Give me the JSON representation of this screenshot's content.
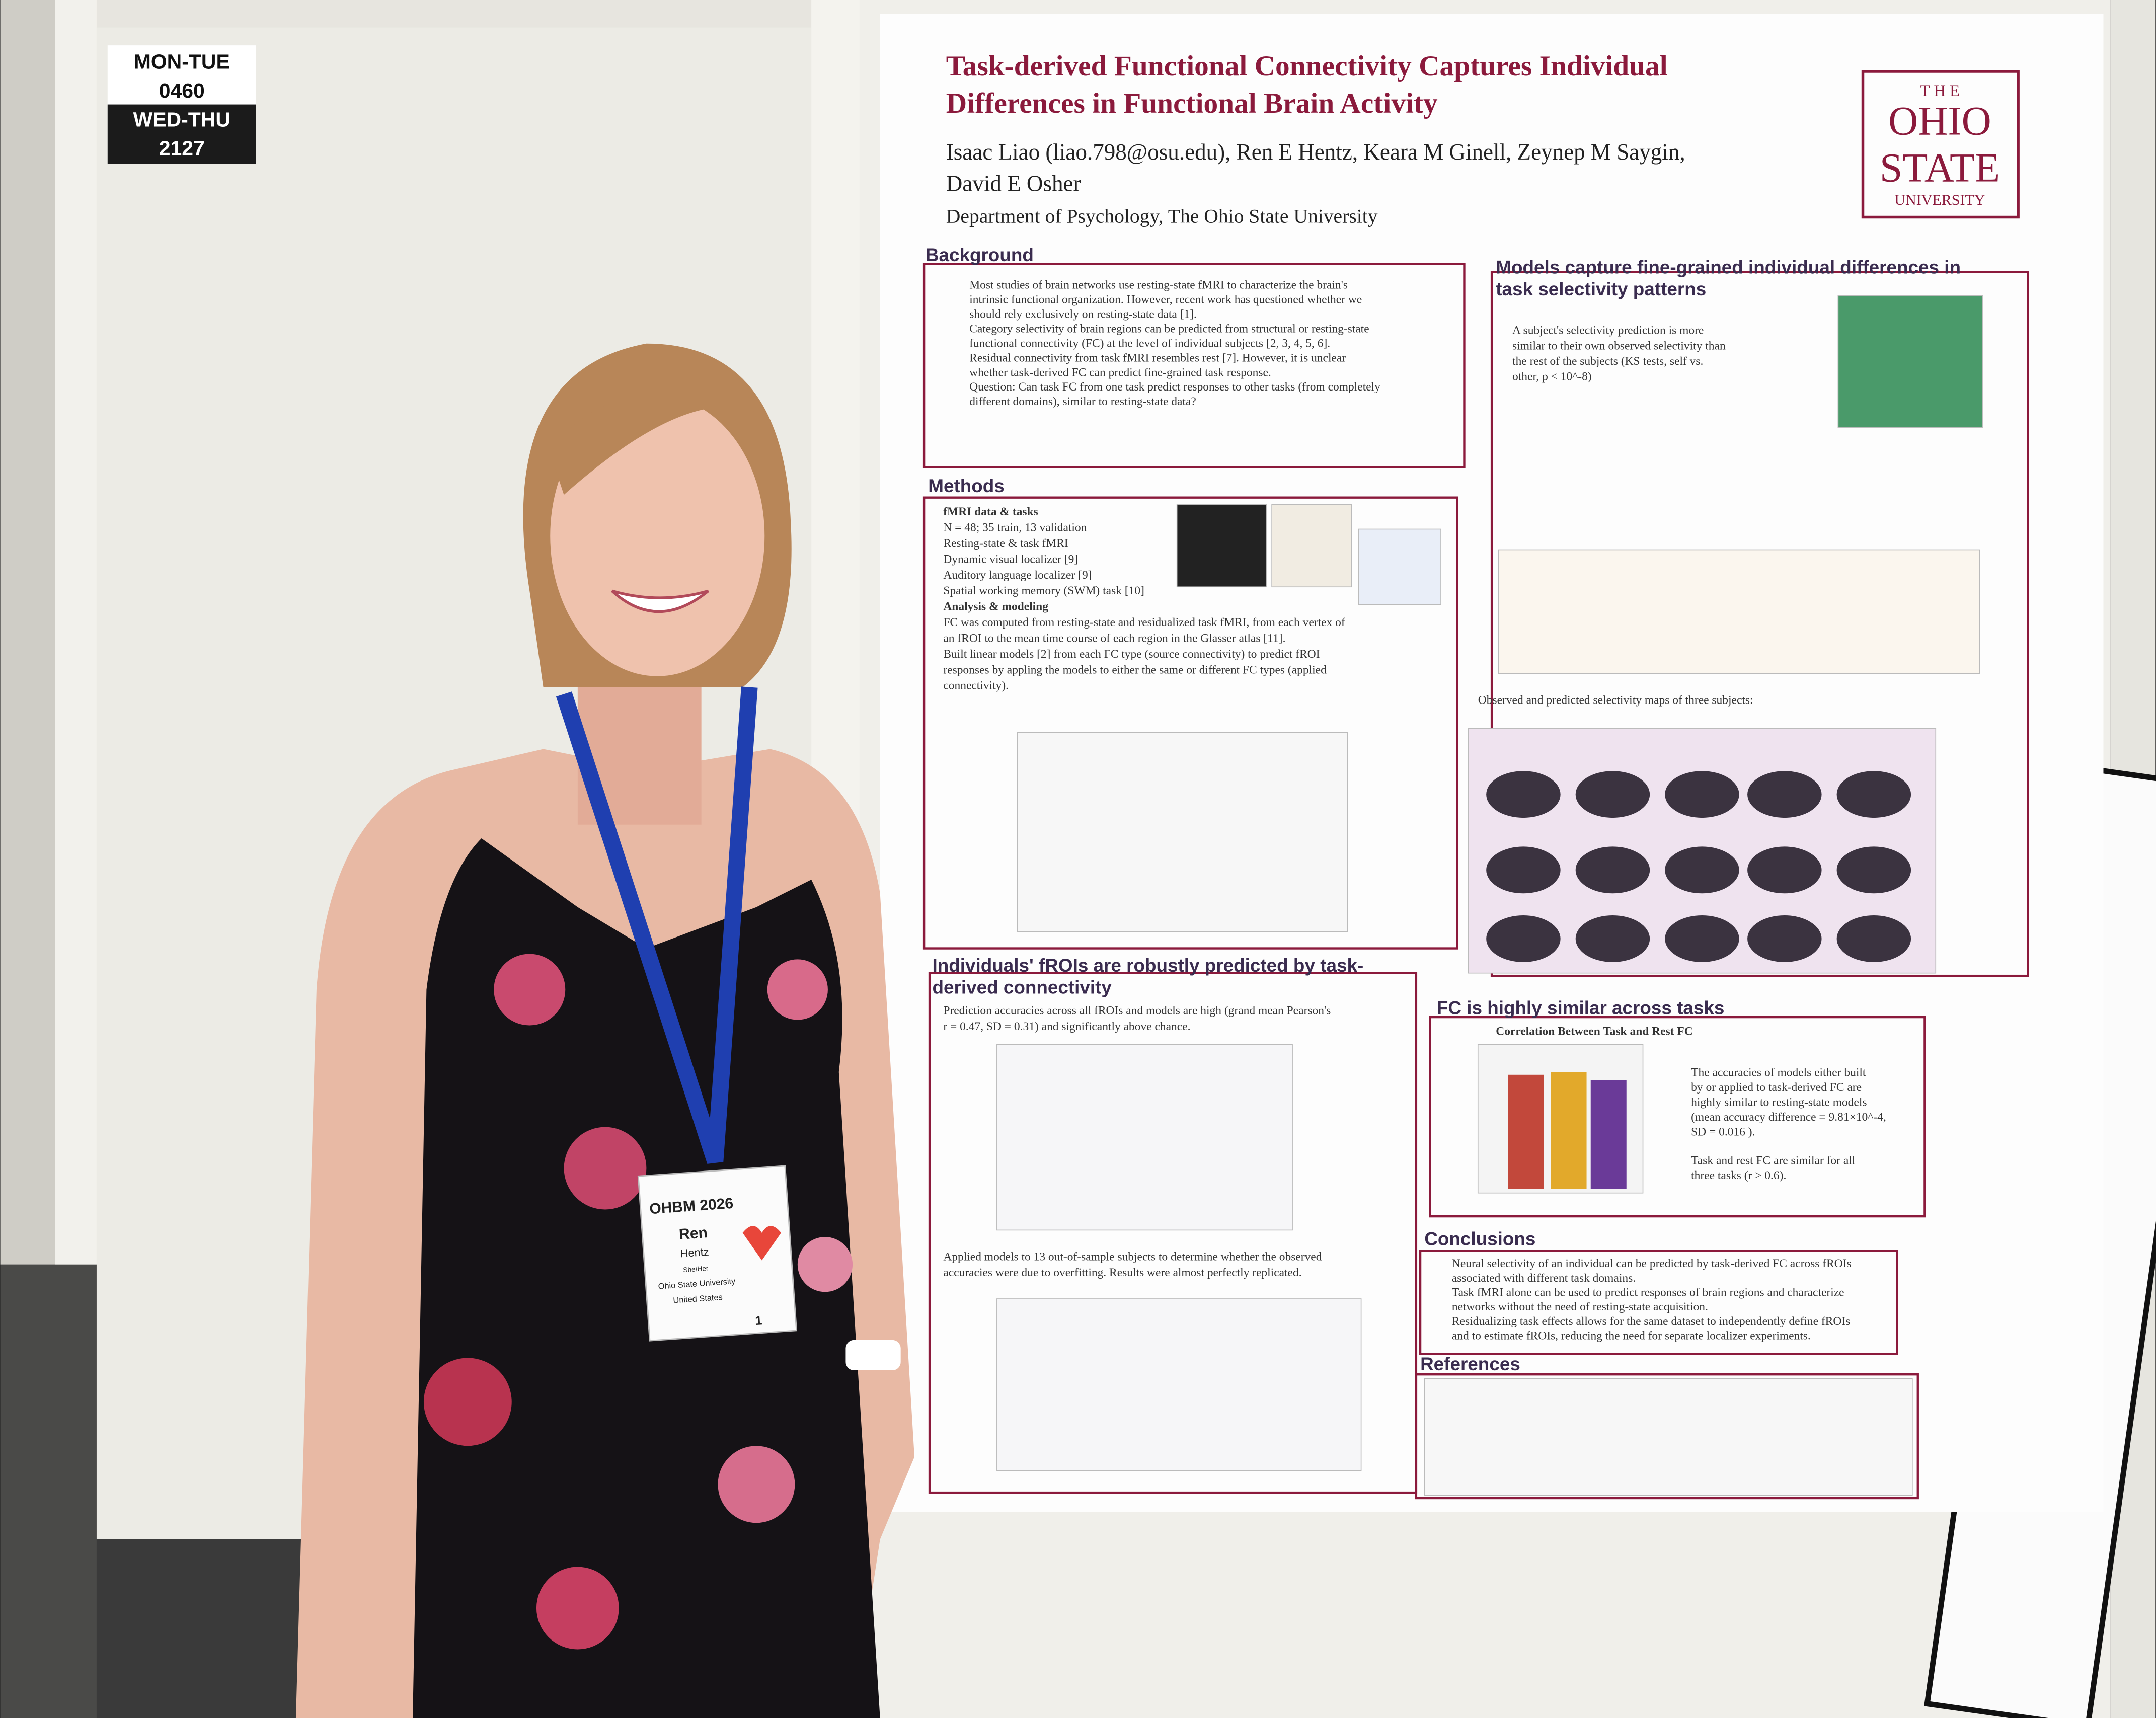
{
  "booth_sign": {
    "lines": [
      "MON-TUE",
      "0460",
      "WED-THU",
      "2127"
    ]
  },
  "poster": {
    "title_lines": [
      "Task-derived Functional Connectivity Captures Individual",
      "Differences in Functional Brain Activity"
    ],
    "author_lines": [
      "Isaac Liao (liao.798@osu.edu), Ren E Hentz, Keara M Ginell, Zeynep M Saygin,",
      "David E Osher"
    ],
    "affiliation": "Department of Psychology, The Ohio State University",
    "logo_lines": [
      "T H E",
      "OHIO",
      "STATE",
      "UNIVERSITY"
    ],
    "sections": [
      {
        "heading": [
          "Background"
        ],
        "lines": [
          "Most studies of brain networks use resting-state fMRI to characterize the brain's",
          "intrinsic functional organization. However, recent work has questioned whether we",
          "should rely exclusively on resting-state data [1].",
          "Category selectivity of brain regions can be predicted from structural or resting-state",
          "functional connectivity (FC) at the level of individual subjects [2, 3, 4, 5, 6].",
          "Residual connectivity from task fMRI resembles rest [7]. However, it is unclear",
          "whether task-derived FC can predict fine-grained task response.",
          "Question: Can task FC from one task predict responses to other tasks (from completely",
          "different domains), similar to resting-state data?"
        ]
      },
      {
        "heading": [
          "Methods"
        ],
        "lines": [
          "fMRI data & tasks",
          "N = 48; 35 train, 13 validation",
          "Resting-state & task fMRI",
          "Dynamic visual localizer [9]",
          "Auditory language localizer [9]",
          "Spatial working memory (SWM) task [10]",
          "Analysis & modeling",
          "FC was computed from resting-state and residualized task fMRI, from each vertex of",
          "an fROI to the mean time course of each region in the Glasser atlas [11].",
          "Built linear models [2] from each FC type (source connectivity) to predict fROI",
          "responses by appling the models to either the same or different FC types (applied",
          "connectivity)."
        ]
      },
      {
        "heading": [
          "Models capture fine-grained individual differences in",
          "task selectivity patterns"
        ],
        "lines": [
          "A subject's selectivity prediction is more",
          "similar to their own observed selectivity than",
          "the rest of the subjects (KS tests, self vs.",
          "other, p < 10^-8)",
          "Observed and predicted selectivity maps of three subjects:"
        ]
      },
      {
        "heading": [
          "Individuals' fROIs are robustly predicted by task-",
          "derived connectivity"
        ],
        "lines": [
          "Prediction accuracies across all fROIs and models are high (grand mean Pearson's",
          "r = 0.47, SD = 0.31) and significantly above chance.",
          "Applied models to 13 out-of-sample subjects to determine whether the observed",
          "accuracies were due to overfitting. Results were almost perfectly replicated."
        ]
      },
      {
        "heading": [
          "FC is highly similar across tasks"
        ],
        "lines": [
          "Correlation Between Task and Rest FC",
          "The accuracies of models either built",
          "by or applied to task-derived FC are",
          "highly similar to resting-state models",
          "(mean accuracy difference = 9.81×10^-4,",
          "SD = 0.016 ).",
          "Task and rest FC are similar for all",
          "three tasks (r > 0.6)."
        ]
      },
      {
        "heading": [
          "Conclusions"
        ],
        "lines": [
          "Neural selectivity of an individual can be predicted by task-derived FC across fROIs",
          "associated with different task domains.",
          "Task fMRI alone can be used to predict responses of brain regions and characterize",
          "networks without the need of resting-state acquisition.",
          "Residualizing task effects allows for the same dataset to independently define fROIs",
          "and to estimate fROIs, reducing the need for separate localizer experiments."
        ]
      },
      {
        "heading": [
          "References"
        ],
        "lines": []
      }
    ]
  },
  "badge": {
    "lines": [
      "OHBM 2026",
      "Ren",
      "Hentz",
      "She/Her",
      "Ohio State University",
      "United States",
      "1"
    ]
  }
}
